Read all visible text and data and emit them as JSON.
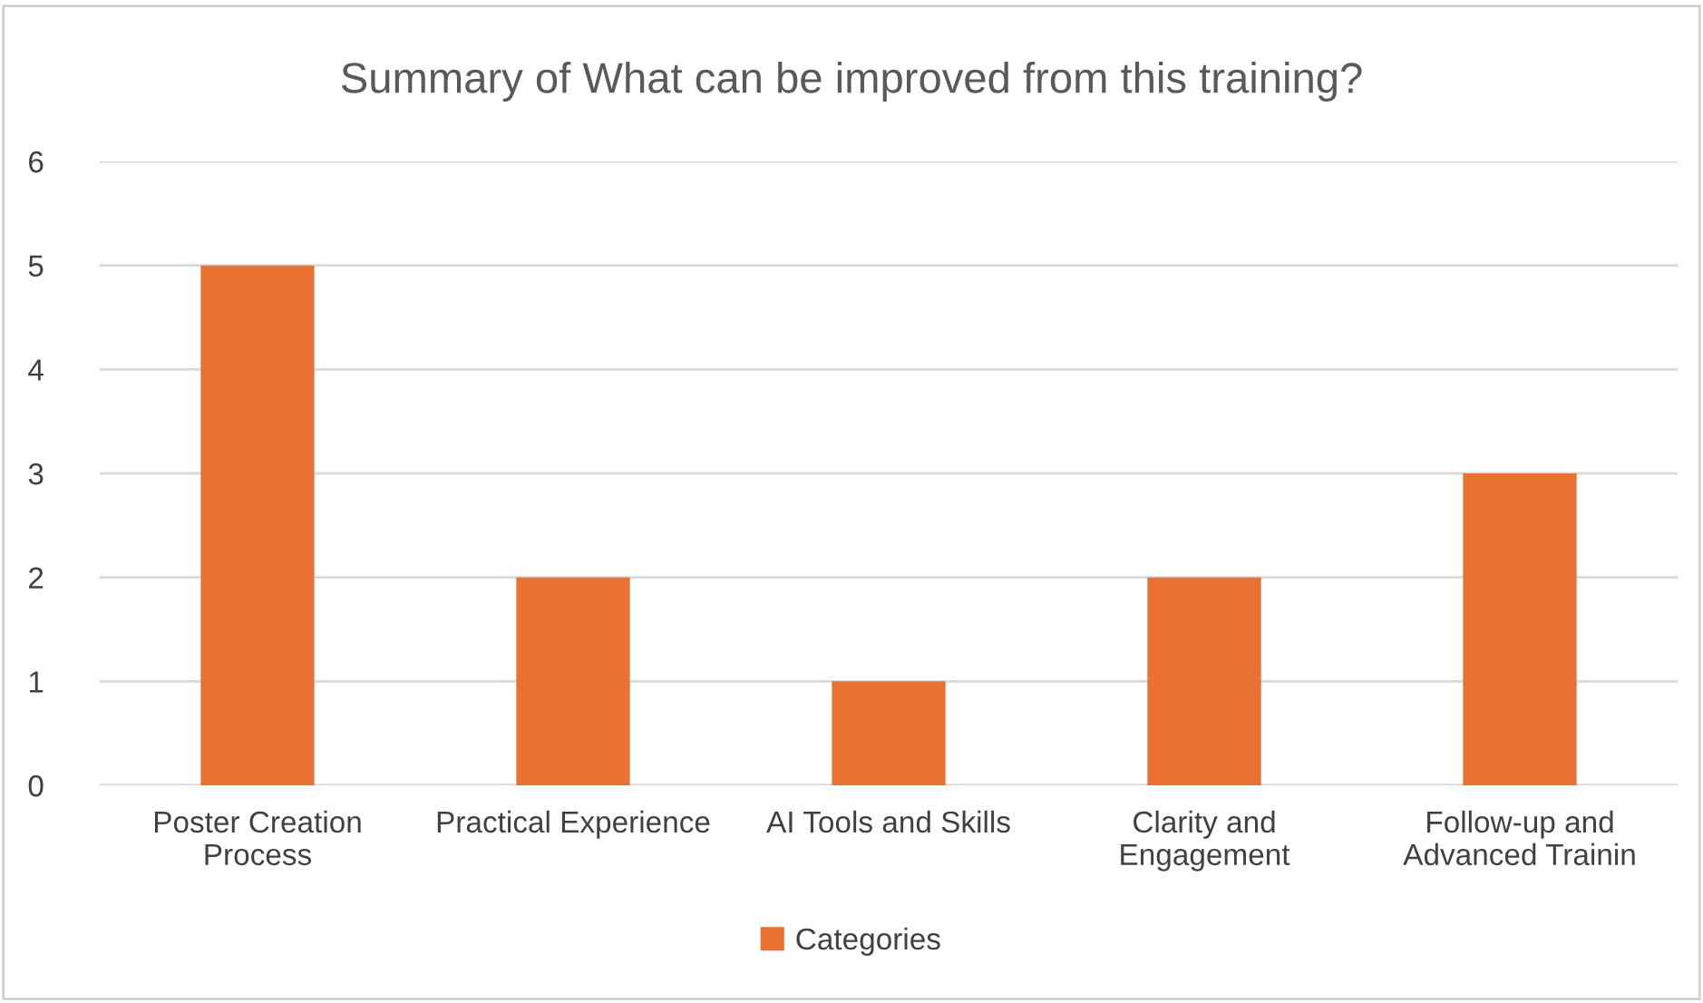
{
  "chart_data": {
    "type": "bar",
    "title": "Summary of What can be improved from this training?",
    "categories": [
      "Poster Creation Process",
      "Practical Experience",
      "AI Tools and Skills",
      "Clarity and Engagement",
      "Follow-up and Advanced Trainin"
    ],
    "series": [
      {
        "name": "Categories",
        "color": "#e97132",
        "values": [
          5,
          2,
          1,
          2,
          3
        ]
      }
    ],
    "ylim": [
      0,
      6
    ],
    "yticks": [
      0,
      1,
      2,
      3,
      4,
      5,
      6
    ],
    "grid": "y",
    "legend": "bottom"
  }
}
